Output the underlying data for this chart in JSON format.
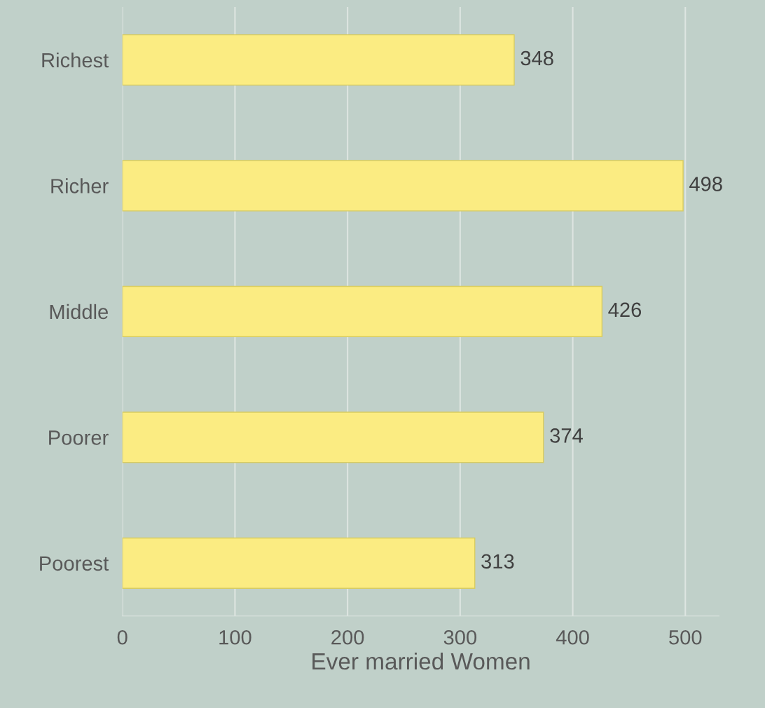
{
  "chart_data": {
    "type": "bar",
    "orientation": "horizontal",
    "xlabel": "Ever married Women",
    "categories": [
      "Richest",
      "Richer",
      "Middle",
      "Poorer",
      "Poorest"
    ],
    "values": [
      348,
      498,
      426,
      374,
      313
    ],
    "color": "#fbec82",
    "xlim": [
      0,
      530
    ],
    "xticks": [
      0,
      100,
      200,
      300,
      400,
      500
    ],
    "grid": "x",
    "data_labels": true
  }
}
